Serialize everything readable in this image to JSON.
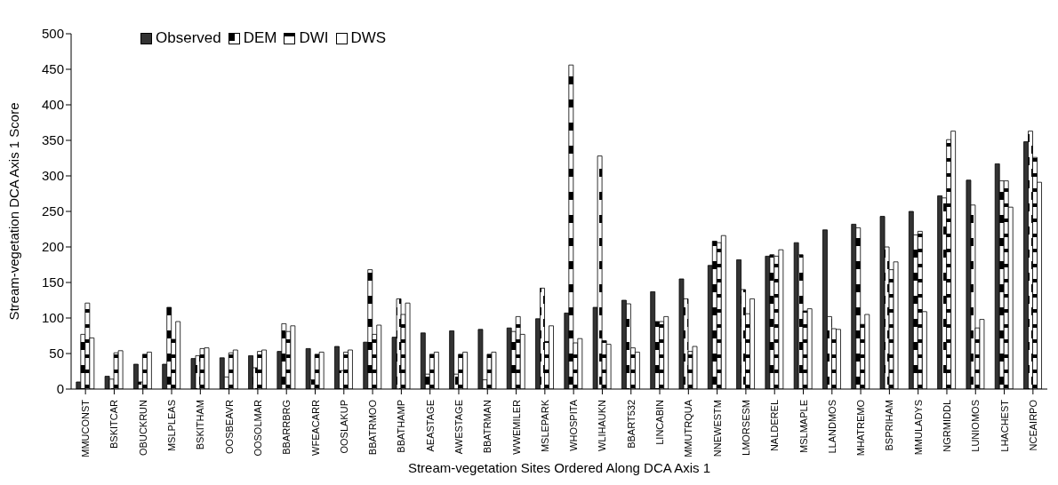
{
  "chart_data": {
    "type": "bar",
    "xlabel": "Stream-vegetation Sites Ordered Along DCA Axis 1",
    "ylabel": "Stream-vegetation DCA Axis 1 Score",
    "categories": [
      "MMUCONST",
      "BSKITCAR",
      "OBUCKRUN",
      "MSLPLEAS",
      "BSKITHAM",
      "OOSBEAVR",
      "OOSOLMAR",
      "BBARRBRG",
      "WFEACARR",
      "OOSLAKUP",
      "BBATRMOO",
      "BBATHAMP",
      "AEASTAGE",
      "AWESTAGE",
      "BBATRMAN",
      "WWEMILER",
      "MSLEPARK",
      "WHOSPITA",
      "WLIHAUKN",
      "BBART532",
      "LINCABIN",
      "MMUTRQUA",
      "NNEWESTM",
      "LMORSESM",
      "NALDEREL",
      "MSLMAPLE",
      "LLANDMOS",
      "MHATREMO",
      "BSPRIHAM",
      "MMULADYS",
      "NGRMIDDL",
      "LUNIOMOS",
      "LHACHEST",
      "NCEAIRPO"
    ],
    "series": [
      {
        "name": "Observed",
        "color": "#333333",
        "values": [
          10,
          18,
          35,
          35,
          43,
          44,
          47,
          53,
          57,
          60,
          66,
          73,
          79,
          82,
          84,
          86,
          99,
          107,
          115,
          125,
          137,
          155,
          174,
          182,
          187,
          206,
          224,
          232,
          243,
          250,
          272,
          294,
          317,
          348
        ]
      },
      {
        "name": "DEM",
        "color": "#000000",
        "values": [
          77,
          14,
          10,
          115,
          47,
          17,
          30,
          92,
          13,
          26,
          168,
          127,
          21,
          21,
          13,
          81,
          142,
          456,
          328,
          120,
          95,
          127,
          208,
          140,
          189,
          189,
          102,
          227,
          200,
          217,
          269,
          259,
          293,
          363
        ]
      },
      {
        "name": "DWI",
        "color": "#000000",
        "values": [
          121,
          51,
          49,
          70,
          57,
          51,
          53,
          81,
          49,
          52,
          77,
          105,
          49,
          49,
          49,
          102,
          67,
          65,
          68,
          58,
          95,
          53,
          206,
          106,
          187,
          110,
          85,
          91,
          168,
          222,
          351,
          86,
          293,
          326
        ]
      },
      {
        "name": "DWS",
        "color": "#ffffff",
        "values": [
          72,
          54,
          52,
          95,
          58,
          55,
          55,
          89,
          52,
          55,
          90,
          121,
          52,
          52,
          52,
          77,
          89,
          71,
          63,
          52,
          102,
          60,
          216,
          127,
          196,
          113,
          84,
          105,
          179,
          109,
          363,
          98,
          256,
          291
        ]
      }
    ],
    "ylim": [
      0,
      500
    ],
    "yticks": [
      0,
      50,
      100,
      150,
      200,
      250,
      300,
      350,
      400,
      450,
      500
    ],
    "grid": false,
    "legend": "top left"
  }
}
